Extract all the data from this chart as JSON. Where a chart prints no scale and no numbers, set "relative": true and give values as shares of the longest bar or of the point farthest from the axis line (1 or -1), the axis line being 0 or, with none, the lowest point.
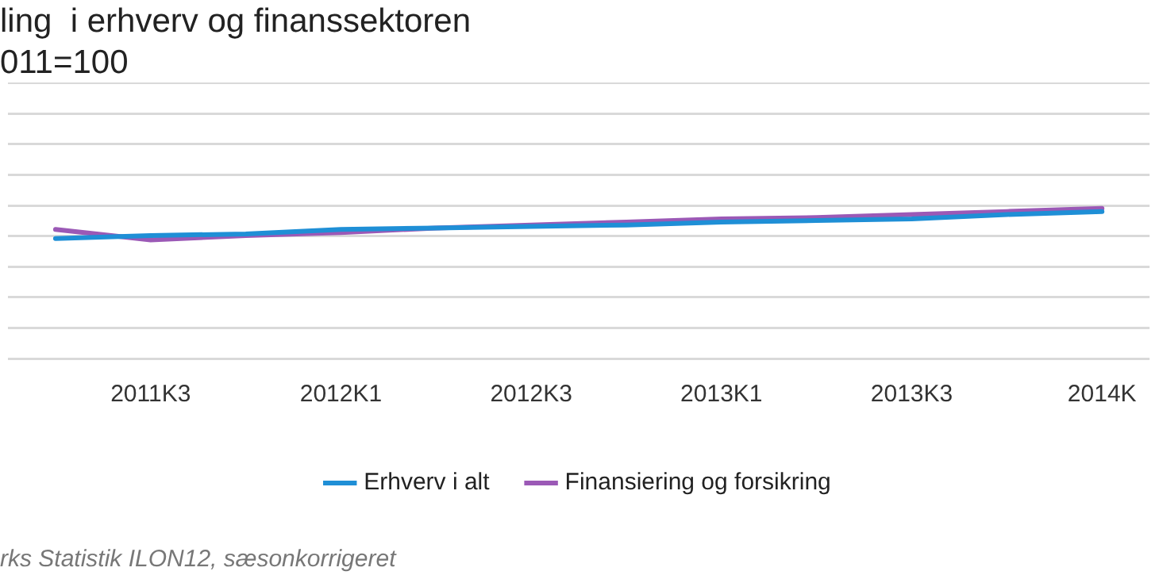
{
  "chart_data": {
    "type": "line",
    "title": "ling  i erhverv og finanssektoren",
    "subtitle": "011=100",
    "categories": [
      null,
      "2011K3",
      null,
      "2012K1",
      null,
      "2012K3",
      null,
      "2013K1",
      null,
      "2013K3",
      null,
      "2014K"
    ],
    "relative": true,
    "series": [
      {
        "name": "Erhverv i alt",
        "color": "#1f8fd6",
        "values": [
          0.8,
          0.82,
          0.83,
          0.86,
          0.87,
          0.88,
          0.89,
          0.91,
          0.92,
          0.93,
          0.96,
          0.98
        ]
      },
      {
        "name": "Finansiering og forsikring",
        "color": "#9b59b6",
        "values": [
          0.86,
          0.79,
          0.82,
          0.84,
          0.87,
          0.89,
          0.91,
          0.93,
          0.94,
          0.96,
          0.98,
          1
        ]
      }
    ],
    "grid": "y",
    "legend": "bottom",
    "marker": "none",
    "line_style": "solid",
    "annotations": [
      "rks Statistik ILON12, sæsonkorrigeret"
    ]
  }
}
